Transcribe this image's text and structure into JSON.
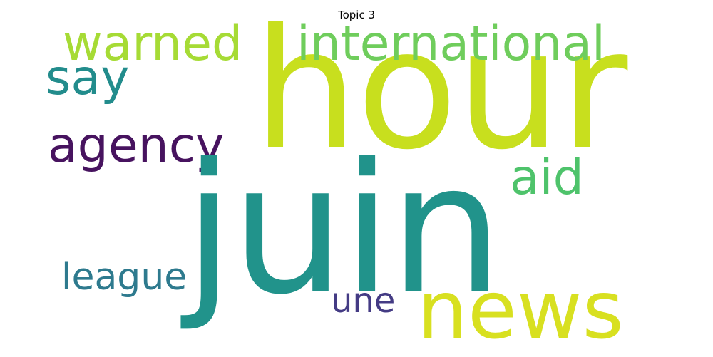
{
  "title": "Topic 3",
  "words": {
    "hour": {
      "text": "hour",
      "color": "#c8df1e"
    },
    "juin": {
      "text": "juin",
      "color": "#21938b"
    },
    "news": {
      "text": "news",
      "color": "#d8e020"
    },
    "international": {
      "text": "international",
      "color": "#6fcd5c"
    },
    "warned": {
      "text": "warned",
      "color": "#a6db35"
    },
    "say": {
      "text": "say",
      "color": "#228c8c"
    },
    "agency": {
      "text": "agency",
      "color": "#47135f"
    },
    "aid": {
      "text": "aid",
      "color": "#4ec36b"
    },
    "league": {
      "text": "league",
      "color": "#2e7a8e"
    },
    "une": {
      "text": "une",
      "color": "#443b84"
    }
  }
}
